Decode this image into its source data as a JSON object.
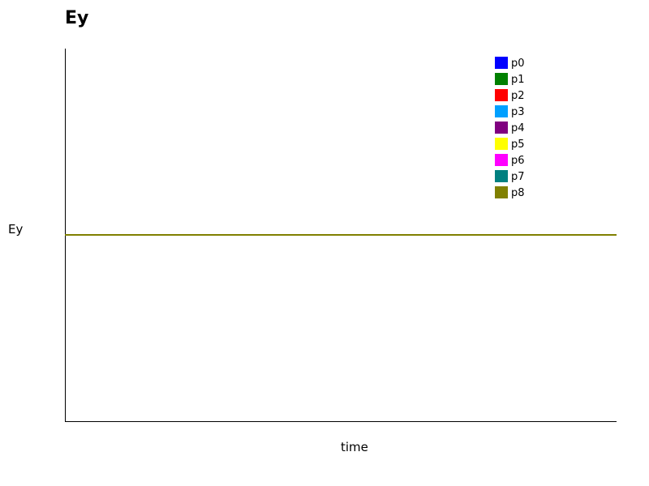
{
  "chart_data": {
    "type": "line",
    "title": "Ey",
    "xlabel": "time",
    "ylabel": "Ey",
    "grid": false,
    "legend_position": "top-right",
    "series": [
      {
        "name": "p0",
        "color": "#0000ff",
        "values": [
          0,
          0
        ]
      },
      {
        "name": "p1",
        "color": "#008000",
        "values": [
          0,
          0
        ]
      },
      {
        "name": "p2",
        "color": "#ff0000",
        "values": [
          0,
          0
        ]
      },
      {
        "name": "p3",
        "color": "#00a0ff",
        "values": [
          0,
          0
        ]
      },
      {
        "name": "p4",
        "color": "#800080",
        "values": [
          0,
          0
        ]
      },
      {
        "name": "p5",
        "color": "#ffff00",
        "values": [
          0,
          0
        ]
      },
      {
        "name": "p6",
        "color": "#ff00ff",
        "values": [
          0,
          0
        ]
      },
      {
        "name": "p7",
        "color": "#008080",
        "values": [
          0,
          0
        ]
      },
      {
        "name": "p8",
        "color": "#808000",
        "values": [
          0,
          0
        ]
      }
    ],
    "ylim": [
      -1,
      1
    ]
  }
}
